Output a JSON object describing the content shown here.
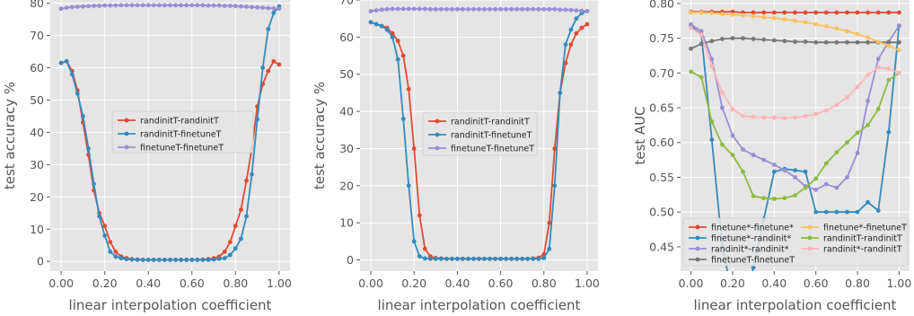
{
  "chart_data": [
    {
      "type": "line",
      "xlabel": "linear interpolation coefficient",
      "ylabel": "test accuracy %",
      "xlim": [
        -0.05,
        1.05
      ],
      "ylim": [
        -3,
        81
      ],
      "xticks": [
        0.0,
        0.2,
        0.4,
        0.6,
        0.8,
        1.0
      ],
      "xtick_labels": [
        "0.00",
        "0.20",
        "0.40",
        "0.60",
        "0.80",
        "1.00"
      ],
      "yticks": [
        0,
        10,
        20,
        30,
        40,
        50,
        60,
        70,
        80
      ],
      "ytick_labels": [
        "0",
        "10",
        "20",
        "30",
        "40",
        "50",
        "60",
        "70",
        "80"
      ],
      "grid": true,
      "legend_position": "center",
      "x": [
        0.0,
        0.025,
        0.05,
        0.075,
        0.1,
        0.125,
        0.15,
        0.175,
        0.2,
        0.225,
        0.25,
        0.275,
        0.3,
        0.325,
        0.35,
        0.375,
        0.4,
        0.425,
        0.45,
        0.475,
        0.5,
        0.525,
        0.55,
        0.575,
        0.6,
        0.625,
        0.65,
        0.675,
        0.7,
        0.725,
        0.75,
        0.775,
        0.8,
        0.825,
        0.85,
        0.875,
        0.9,
        0.925,
        0.95,
        0.975,
        1.0
      ],
      "series": [
        {
          "name": "randinitT-randinitT",
          "color": "#e24a33",
          "values": [
            61.5,
            62,
            59,
            53,
            43,
            33,
            22,
            15,
            11,
            6,
            3,
            1.5,
            1,
            0.7,
            0.6,
            0.5,
            0.5,
            0.5,
            0.5,
            0.5,
            0.5,
            0.5,
            0.5,
            0.5,
            0.5,
            0.5,
            0.6,
            0.7,
            1,
            1.5,
            3,
            6,
            11,
            16,
            25,
            35,
            48,
            55,
            59,
            62,
            61
          ]
        },
        {
          "name": "randinitT-finetuneT",
          "color": "#348abd",
          "values": [
            61.5,
            62,
            58,
            52,
            45,
            35,
            24,
            14,
            8,
            3,
            1.5,
            1,
            0.7,
            0.6,
            0.5,
            0.5,
            0.5,
            0.5,
            0.5,
            0.5,
            0.5,
            0.5,
            0.5,
            0.5,
            0.5,
            0.5,
            0.5,
            0.5,
            0.6,
            0.8,
            1,
            2,
            4,
            7,
            14,
            27,
            44,
            60,
            72,
            77,
            79
          ]
        },
        {
          "name": "finetuneT-finetuneT",
          "color": "#988ed5",
          "values": [
            78.3,
            78.6,
            78.8,
            78.9,
            79,
            79.1,
            79.2,
            79.2,
            79.3,
            79.3,
            79.3,
            79.4,
            79.4,
            79.4,
            79.4,
            79.4,
            79.4,
            79.4,
            79.4,
            79.4,
            79.4,
            79.4,
            79.4,
            79.4,
            79.4,
            79.4,
            79.4,
            79.3,
            79.3,
            79.3,
            79.2,
            79.2,
            79.1,
            79,
            78.9,
            78.8,
            78.7,
            78.6,
            78.5,
            78.4,
            78.3
          ]
        }
      ]
    },
    {
      "type": "line",
      "xlabel": "linear interpolation coefficient",
      "ylabel": "test accuracy %",
      "xlim": [
        -0.05,
        1.05
      ],
      "ylim": [
        -3,
        70
      ],
      "xticks": [
        0.0,
        0.2,
        0.4,
        0.6,
        0.8,
        1.0
      ],
      "xtick_labels": [
        "0.00",
        "0.20",
        "0.40",
        "0.60",
        "0.80",
        "1.00"
      ],
      "yticks": [
        0,
        10,
        20,
        30,
        40,
        50,
        60,
        70
      ],
      "ytick_labels": [
        "0",
        "10",
        "20",
        "30",
        "40",
        "50",
        "60",
        "70"
      ],
      "grid": true,
      "legend_position": "center",
      "x": [
        0.0,
        0.025,
        0.05,
        0.075,
        0.1,
        0.125,
        0.15,
        0.175,
        0.2,
        0.225,
        0.25,
        0.275,
        0.3,
        0.325,
        0.35,
        0.375,
        0.4,
        0.425,
        0.45,
        0.475,
        0.5,
        0.525,
        0.55,
        0.575,
        0.6,
        0.625,
        0.65,
        0.675,
        0.7,
        0.725,
        0.75,
        0.775,
        0.8,
        0.825,
        0.85,
        0.875,
        0.9,
        0.925,
        0.95,
        0.975,
        1.0
      ],
      "series": [
        {
          "name": "randinitT-randinitT",
          "color": "#e24a33",
          "values": [
            64,
            63.5,
            63,
            62.5,
            61,
            59,
            55,
            46,
            30,
            12,
            3,
            1,
            0.5,
            0.4,
            0.3,
            0.3,
            0.3,
            0.3,
            0.3,
            0.3,
            0.3,
            0.3,
            0.3,
            0.3,
            0.3,
            0.3,
            0.3,
            0.3,
            0.3,
            0.3,
            0.4,
            0.6,
            1.5,
            10,
            30,
            45,
            53,
            58,
            61,
            62.5,
            63.5
          ]
        },
        {
          "name": "randinitT-finetuneT",
          "color": "#348abd",
          "values": [
            64,
            63.5,
            63,
            62,
            60,
            54,
            38,
            20,
            5,
            1,
            0.4,
            0.3,
            0.3,
            0.3,
            0.3,
            0.3,
            0.3,
            0.3,
            0.3,
            0.3,
            0.3,
            0.3,
            0.3,
            0.3,
            0.3,
            0.3,
            0.3,
            0.3,
            0.3,
            0.3,
            0.3,
            0.3,
            0.5,
            3,
            20,
            45,
            58,
            62,
            65,
            66.5,
            67
          ]
        },
        {
          "name": "finetuneT-finetuneT",
          "color": "#988ed5",
          "values": [
            67,
            67.2,
            67.4,
            67.5,
            67.6,
            67.6,
            67.6,
            67.6,
            67.6,
            67.6,
            67.6,
            67.5,
            67.5,
            67.5,
            67.5,
            67.5,
            67.5,
            67.5,
            67.5,
            67.5,
            67.5,
            67.5,
            67.5,
            67.5,
            67.5,
            67.5,
            67.5,
            67.5,
            67.5,
            67.5,
            67.5,
            67.5,
            67.5,
            67.5,
            67.5,
            67.4,
            67.4,
            67.3,
            67.2,
            67.1,
            67
          ]
        }
      ]
    },
    {
      "type": "line",
      "xlabel": "linear interpolation coefficient",
      "ylabel": "test AUC",
      "xlim": [
        -0.05,
        1.05
      ],
      "ylim": [
        0.415,
        0.805
      ],
      "xticks": [
        0.0,
        0.2,
        0.4,
        0.6,
        0.8,
        1.0
      ],
      "xtick_labels": [
        "0.00",
        "0.20",
        "0.40",
        "0.60",
        "0.80",
        "1.00"
      ],
      "yticks": [
        0.45,
        0.5,
        0.55,
        0.6,
        0.65,
        0.7,
        0.75,
        0.8
      ],
      "ytick_labels": [
        "0.45",
        "0.50",
        "0.55",
        "0.60",
        "0.65",
        "0.70",
        "0.75",
        "0.80"
      ],
      "grid": true,
      "legend_position": "bottom",
      "x": [
        0.0,
        0.05,
        0.1,
        0.15,
        0.2,
        0.25,
        0.3,
        0.35,
        0.4,
        0.45,
        0.5,
        0.55,
        0.6,
        0.65,
        0.7,
        0.75,
        0.8,
        0.85,
        0.9,
        0.95,
        1.0
      ],
      "series": [
        {
          "name": "finetune*-finetune*",
          "color": "#e24a33",
          "values": [
            0.788,
            0.788,
            0.788,
            0.788,
            0.788,
            0.787,
            0.787,
            0.787,
            0.787,
            0.787,
            0.787,
            0.787,
            0.787,
            0.787,
            0.787,
            0.787,
            0.787,
            0.787,
            0.787,
            0.787,
            0.787
          ]
        },
        {
          "name": "finetune*-randinit*",
          "color": "#348abd",
          "values": [
            0.768,
            0.755,
            0.604,
            0.45,
            0.38,
            0.36,
            0.42,
            0.49,
            0.558,
            0.562,
            0.56,
            0.558,
            0.5,
            0.5,
            0.5,
            0.5,
            0.5,
            0.514,
            0.502,
            0.615,
            0.768
          ]
        },
        {
          "name": "randinit*-randinit*",
          "color": "#988ed5",
          "values": [
            0.77,
            0.76,
            0.72,
            0.65,
            0.61,
            0.59,
            0.582,
            0.575,
            0.568,
            0.56,
            0.55,
            0.537,
            0.532,
            0.54,
            0.535,
            0.55,
            0.585,
            0.66,
            0.72,
            0.745,
            0.768
          ]
        },
        {
          "name": "finetuneT-finetuneT",
          "color": "#777777",
          "values": [
            0.735,
            0.742,
            0.746,
            0.749,
            0.75,
            0.75,
            0.749,
            0.748,
            0.747,
            0.746,
            0.745,
            0.745,
            0.744,
            0.744,
            0.744,
            0.744,
            0.744,
            0.744,
            0.744,
            0.744,
            0.744
          ]
        },
        {
          "name": "finetune*-finetuneT",
          "color": "#fbc15e",
          "values": [
            0.787,
            0.787,
            0.786,
            0.785,
            0.784,
            0.783,
            0.782,
            0.78,
            0.779,
            0.777,
            0.775,
            0.773,
            0.77,
            0.767,
            0.764,
            0.76,
            0.756,
            0.751,
            0.745,
            0.739,
            0.733
          ]
        },
        {
          "name": "randinitT-randinitT",
          "color": "#8eba42",
          "values": [
            0.702,
            0.694,
            0.63,
            0.597,
            0.582,
            0.558,
            0.523,
            0.52,
            0.519,
            0.52,
            0.524,
            0.535,
            0.548,
            0.57,
            0.586,
            0.6,
            0.614,
            0.625,
            0.648,
            0.69,
            0.7
          ]
        },
        {
          "name": "randinit*-randinitT",
          "color": "#ffb5b8",
          "values": [
            0.765,
            0.755,
            0.71,
            0.672,
            0.648,
            0.638,
            0.637,
            0.636,
            0.636,
            0.635,
            0.636,
            0.638,
            0.641,
            0.646,
            0.654,
            0.665,
            0.68,
            0.697,
            0.708,
            0.706,
            0.7
          ]
        }
      ]
    }
  ]
}
